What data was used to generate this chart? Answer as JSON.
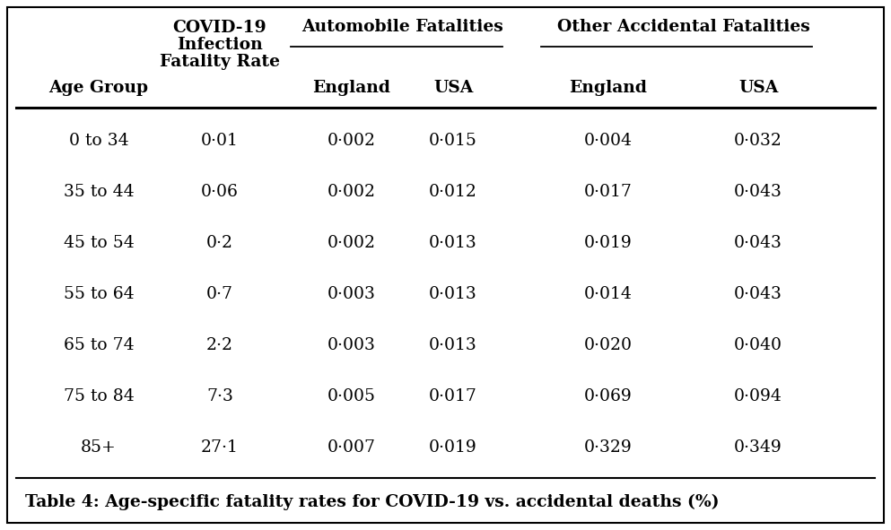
{
  "title": "Table 4: Age-specific fatality rates for COVID-19 vs. accidental deaths (%)",
  "col_headers_line1": [
    "Age Group",
    "COVID-19",
    "Automobile Fatalities",
    "",
    "Other Accidental Fatalities",
    "",
    ""
  ],
  "col_headers_line2": [
    "",
    "Infection",
    "",
    "",
    "",
    "",
    ""
  ],
  "col_headers_line3": [
    "",
    "Fatality Rate",
    "England",
    "USA",
    "England",
    "USA",
    ""
  ],
  "group_header_auto": "Automobile Fatalities",
  "group_header_other": "Other Accidental Fatalities",
  "sub_age": "Age Group",
  "sub_ifr": "COVID-19\nInfection\nFatality Rate",
  "sub_england1": "England",
  "sub_usa1": "USA",
  "sub_england2": "England",
  "sub_usa2": "USA",
  "rows": [
    {
      "age": "0 to 34",
      "ifr": "0·01",
      "ae": "0·002",
      "au": "0·015",
      "oe": "0·004",
      "ou": "0·032"
    },
    {
      "age": "35 to 44",
      "ifr": "0·06",
      "ae": "0·002",
      "au": "0·012",
      "oe": "0·017",
      "ou": "0·043"
    },
    {
      "age": "45 to 54",
      "ifr": "0·2",
      "ae": "0·002",
      "au": "0·013",
      "oe": "0·019",
      "ou": "0·043"
    },
    {
      "age": "55 to 64",
      "ifr": "0·7",
      "ae": "0·003",
      "au": "0·013",
      "oe": "0·014",
      "ou": "0·043"
    },
    {
      "age": "65 to 74",
      "ifr": "2·2",
      "ae": "0·003",
      "au": "0·013",
      "oe": "0·020",
      "ou": "0·040"
    },
    {
      "age": "75 to 84",
      "ifr": "7·3",
      "ae": "0·005",
      "au": "0·017",
      "oe": "0·069",
      "ou": "0·094"
    },
    {
      "age": "85+",
      "ifr": "27·1",
      "ae": "0·007",
      "au": "0·019",
      "oe": "0·329",
      "ou": "0·349"
    }
  ],
  "bg": "#ffffff",
  "fg": "#000000",
  "fs_data": 13.5,
  "fs_header": 13.5,
  "fs_title": 13.5
}
